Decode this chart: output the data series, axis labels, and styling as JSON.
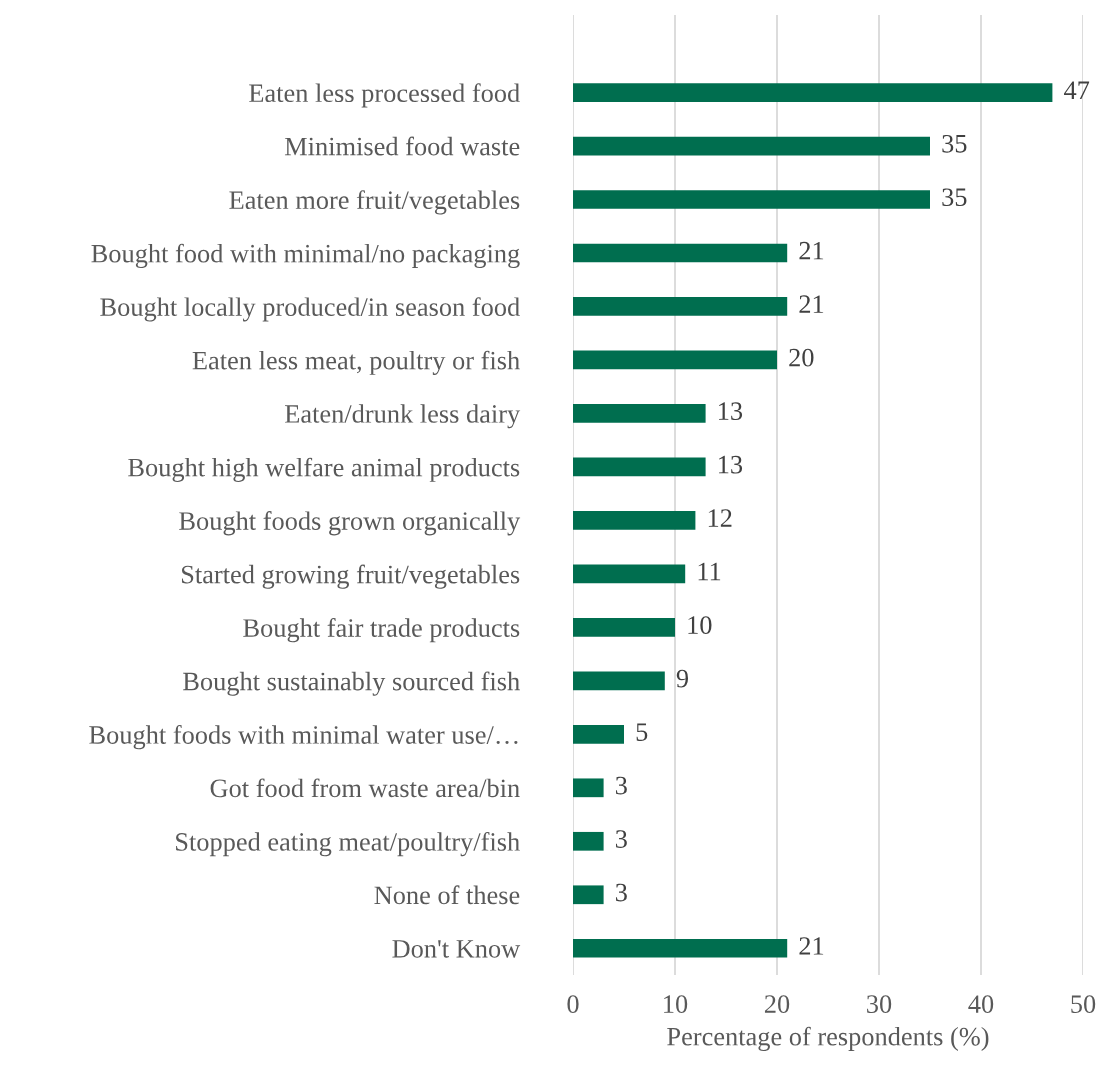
{
  "chart_data": {
    "type": "bar",
    "orientation": "horizontal",
    "categories": [
      "Eaten less processed food",
      "Minimised food waste",
      "Eaten more fruit/vegetables",
      "Bought food with minimal/no packaging",
      "Bought locally produced/in season food",
      "Eaten less meat, poultry or fish",
      "Eaten/drunk less dairy",
      "Bought high welfare animal products",
      "Bought foods grown organically",
      "Started growing fruit/vegetables",
      "Bought fair trade products",
      "Bought sustainably sourced fish",
      "Bought foods with minimal water use/…",
      "Got food from waste area/bin",
      "Stopped eating meat/poultry/fish",
      "None of these",
      "Don't Know"
    ],
    "values": [
      47,
      35,
      35,
      21,
      21,
      20,
      13,
      13,
      12,
      11,
      10,
      9,
      5,
      3,
      3,
      3,
      21
    ],
    "color": "#006e4f",
    "xlabel": "Percentage of respondents (%)",
    "xlim": [
      0,
      50
    ],
    "xticks": [
      0,
      10,
      20,
      30,
      40,
      50
    ],
    "grid": "x",
    "data_labels": true
  }
}
